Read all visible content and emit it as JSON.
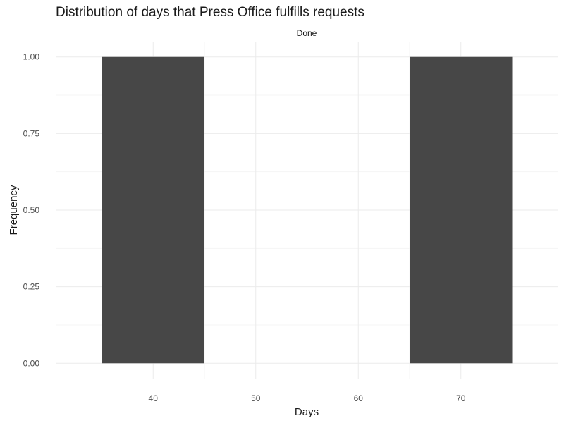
{
  "chart_data": {
    "type": "bar",
    "title": "Distribution of days that Press Office fulfills requests",
    "facet_label": "Done",
    "xlabel": "Days",
    "ylabel": "Frequency",
    "bins": [
      {
        "x_start": 35,
        "x_end": 45,
        "value": 1
      },
      {
        "x_start": 65,
        "x_end": 75,
        "value": 1
      }
    ],
    "xlim": [
      30.5,
      79.5
    ],
    "ylim": [
      -0.05,
      1.05
    ],
    "x_ticks": [
      40,
      50,
      60,
      70
    ],
    "x_tick_labels": [
      "40",
      "50",
      "60",
      "70"
    ],
    "y_ticks": [
      0,
      0.25,
      0.5,
      0.75,
      1
    ],
    "y_tick_labels": [
      "0.00",
      "0.25",
      "0.50",
      "0.75",
      "1.00"
    ],
    "bar_color": "#474747",
    "grid": true,
    "legend": "none"
  }
}
